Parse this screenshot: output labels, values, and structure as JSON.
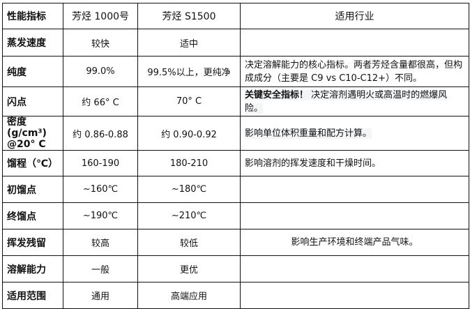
{
  "table": {
    "headers": [
      "性能指标",
      "芳烃 1000号",
      "芳烃 S1500",
      "适用行业"
    ],
    "rows": [
      {
        "label": "蒸发速度",
        "a": "较快",
        "b": "适中",
        "note": ""
      },
      {
        "label": "纯度",
        "a": "99.0%",
        "b": "99.5%以上，更纯净",
        "note": "决定溶解能力的核心指标。两者芳烃含量都很高，但构成成分（主要是 C9 vs C10-C12+）不同。"
      },
      {
        "label": "闪点",
        "a": "约 66° C",
        "b": "70° C",
        "note_bold": "关键安全指标！",
        "note": "决定溶剂遇明火或高温时的燃爆风险。"
      },
      {
        "label": "密度 (g/cm³) @20° C",
        "a": "约 0.86-0.88",
        "b": "约 0.90-0.92",
        "note": "影响单位体积重量和配方计算。"
      },
      {
        "label": "馏程（℃）",
        "a": "160-190",
        "b": "180-210",
        "note": "影响溶剂的挥发速度和干燥时间。"
      },
      {
        "label": "初馏点",
        "a": "~160℃",
        "b": "~180℃",
        "note": ""
      },
      {
        "label": "终馏点",
        "a": "~190℃",
        "b": "~210℃",
        "note": ""
      },
      {
        "label": "挥发残留",
        "a": "较高",
        "b": "较低",
        "note": "影响生产环境和终端产品气味。"
      },
      {
        "label": "溶解能力",
        "a": "一般",
        "b": "更优",
        "note": ""
      },
      {
        "label": "适用范围",
        "a": "通用",
        "b": "高端应用",
        "note": ""
      }
    ]
  }
}
